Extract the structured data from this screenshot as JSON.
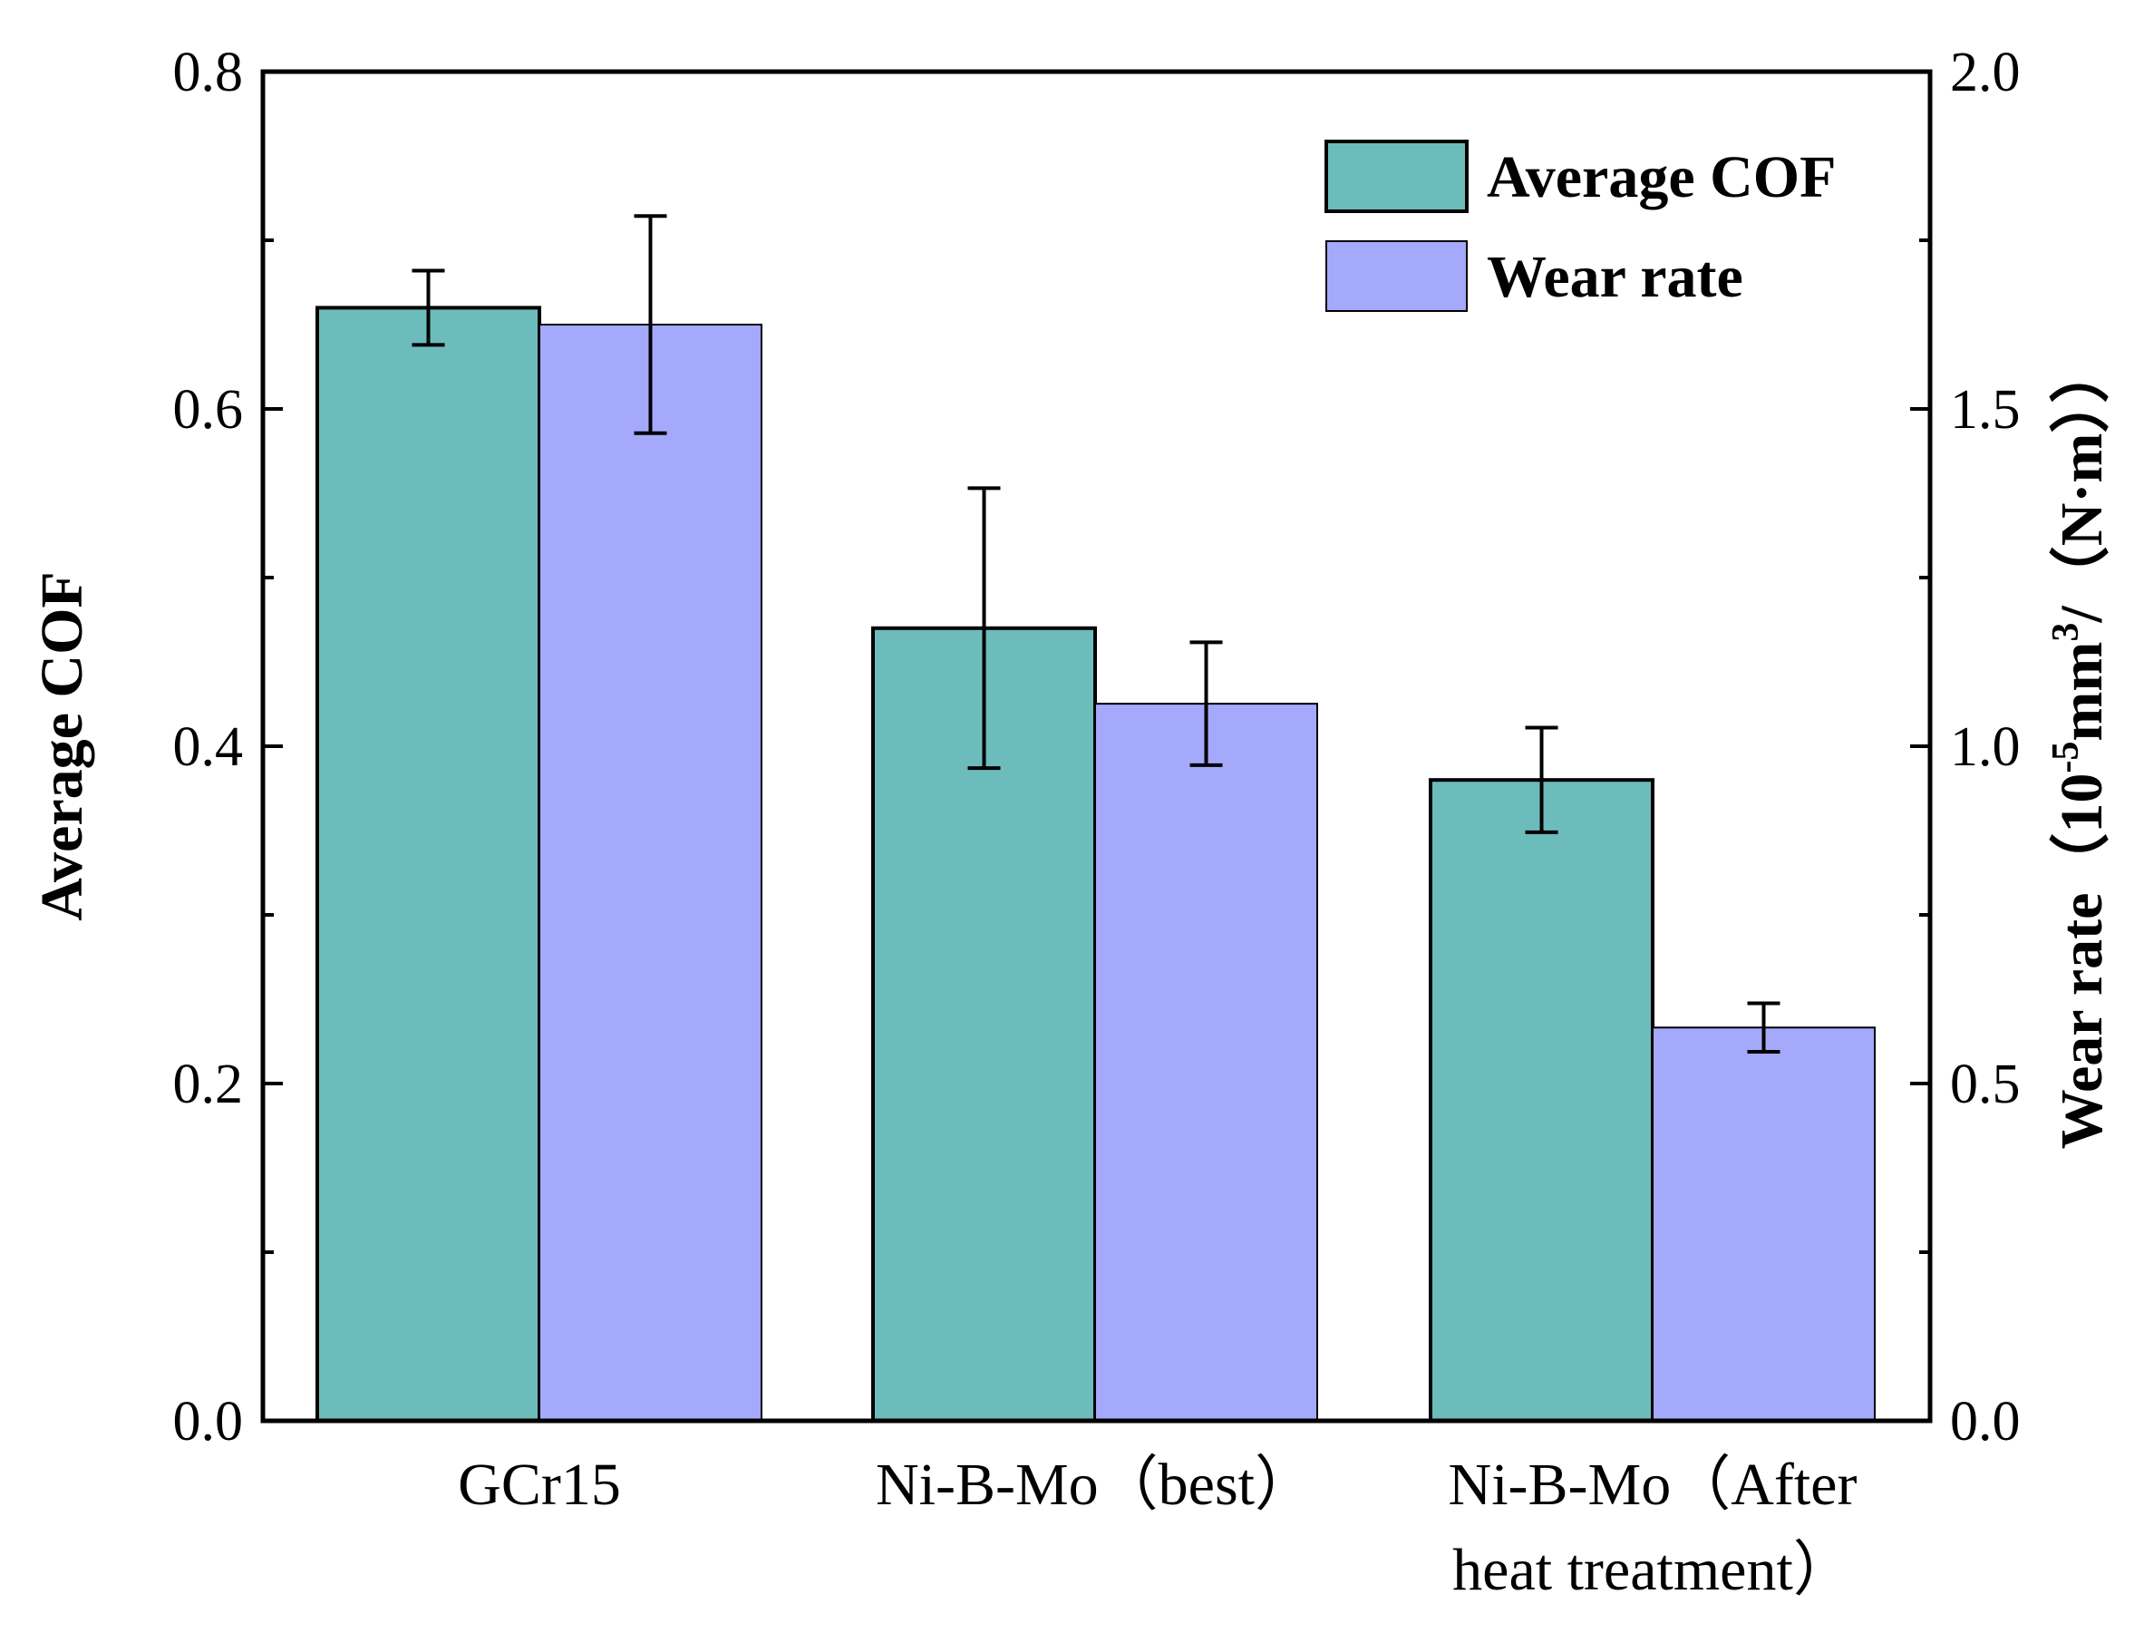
{
  "chart_data": {
    "type": "bar",
    "categories": [
      [
        "GCr15"
      ],
      [
        "Ni-B-Mo（best）"
      ],
      [
        "Ni-B-Mo（After",
        "heat treatment）"
      ]
    ],
    "series": [
      {
        "name": "Average COF",
        "axis": "left",
        "color": "#6cbcbc",
        "values": [
          0.66,
          0.47,
          0.38
        ],
        "error": [
          0.022,
          0.083,
          0.031
        ]
      },
      {
        "name": "Wear rate",
        "axis": "right",
        "color": "#a5a9fb",
        "values": [
          1.625,
          1.063,
          0.583
        ],
        "error": [
          0.161,
          0.091,
          0.036
        ]
      }
    ],
    "ylabel": "Average COF",
    "ylim": [
      0,
      0.8
    ],
    "yticks": [
      "0.0",
      "0.2",
      "0.4",
      "0.6",
      "0.8"
    ],
    "y2label_prefix": "Wear rate（10",
    "y2label_exp1": "-5",
    "y2label_mid": "mm",
    "y2label_exp2": "3",
    "y2label_suffix": "/（N·m））",
    "y2lim": [
      0,
      2.0
    ],
    "y2ticks": [
      "0.0",
      "0.5",
      "1.0",
      "1.5",
      "2.0"
    ],
    "legend_position": "top-right",
    "grid": false
  }
}
